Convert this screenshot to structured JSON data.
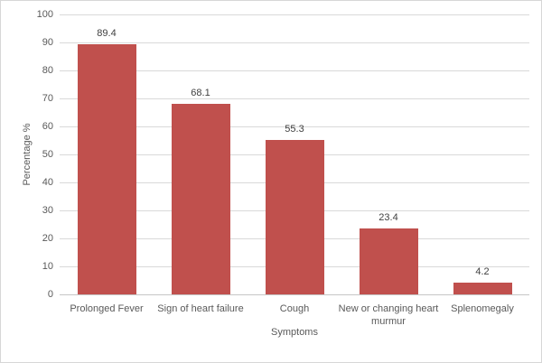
{
  "chart_data": {
    "type": "bar",
    "title": "",
    "categories": [
      "Prolonged Fever",
      "Sign of heart failure",
      "Cough",
      "New or changing heart murmur",
      "Splenomegaly"
    ],
    "values": [
      89.4,
      68.1,
      55.3,
      23.4,
      4.2
    ],
    "xlabel": "Symptoms",
    "ylabel": "Percentage %",
    "ylim": [
      0,
      100
    ],
    "ytick_step": 10,
    "ytick_labels": [
      "0",
      "10",
      "20",
      "30",
      "40",
      "50",
      "60",
      "70",
      "80",
      "90",
      "100"
    ],
    "grid": true,
    "legend": "none",
    "bar_color": "#c0504d",
    "colors": {
      "gridline": "#d9d9d9",
      "axis_line": "#c6c6c6",
      "tick_text": "#595959",
      "value_label_text": "#404040",
      "figure_border": "#d7d7d7",
      "background": "#ffffff"
    }
  }
}
